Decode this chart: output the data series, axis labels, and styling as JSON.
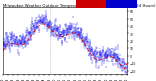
{
  "title": "Milwaukee Weather Outdoor Temperature vs Wind Chill per Minute (24 Hours)",
  "bg_color": "#ffffff",
  "bar_color": "#0000ee",
  "windchill_color": "#dd0000",
  "legend_red": "#cc0000",
  "legend_blue": "#0000cc",
  "ylim": [
    -25,
    65
  ],
  "yticks": [
    -20,
    -10,
    0,
    10,
    20,
    30,
    40,
    50,
    60
  ],
  "num_points": 1440,
  "seed": 99,
  "title_fontsize": 2.8,
  "tick_fontsize": 2.2
}
